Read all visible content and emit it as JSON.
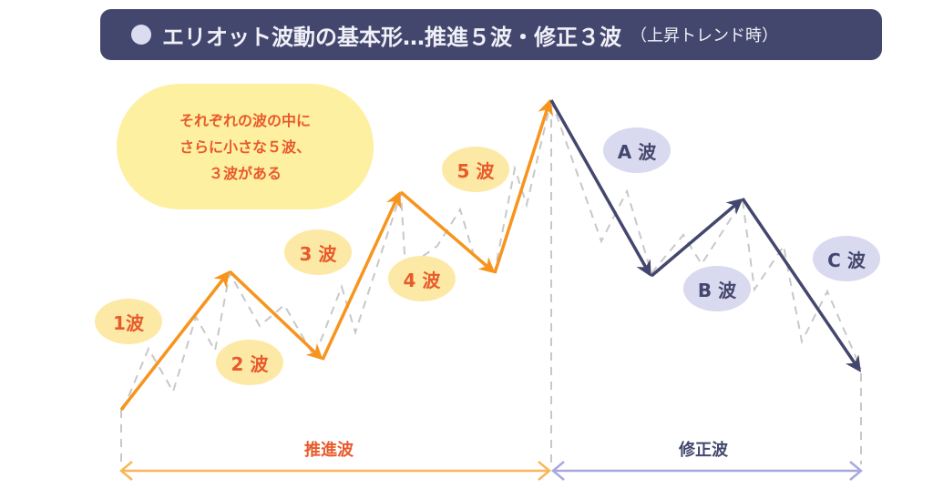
{
  "title": {
    "main": "エリオット波動の基本形…推進５波・修正３波",
    "sub": "（上昇トレンド時）"
  },
  "note": {
    "lines": [
      "それぞれの波の中に",
      "さらに小さな５波、",
      "３波がある"
    ]
  },
  "waves": {
    "w1": "1波",
    "w2": "2 波",
    "w3": "3 波",
    "w4": "4 波",
    "w5": "5 波",
    "wA": "A 波",
    "wB": "B 波",
    "wC": "C 波"
  },
  "phases": {
    "impulse": "推進波",
    "corrective": "修正波"
  },
  "colors": {
    "title_bg": "#44476d",
    "impulse": "#f7941d",
    "corrective": "#44476d",
    "impulse_range": "#f9b65a",
    "corrective_range": "#a8a8de",
    "label_orange": "#e85a2c",
    "sub_wave": "#c8c8c8"
  }
}
